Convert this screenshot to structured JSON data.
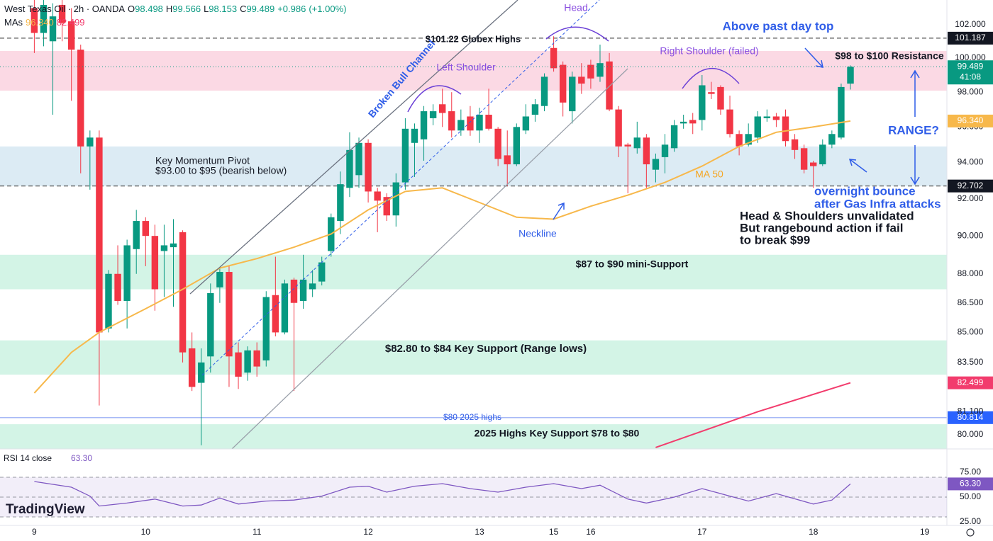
{
  "header": {
    "symbol": "West Texas Oil · 2h · OANDA",
    "fields": [
      {
        "key": "O",
        "value": 98.498
      },
      {
        "key": "H",
        "value": 99.566
      },
      {
        "key": "L",
        "value": 98.153
      },
      {
        "key": "C",
        "value": 99.489
      }
    ],
    "change": {
      "value": 0.986,
      "label": "+0.986"
    },
    "change_pct": {
      "value": 1.0,
      "label": "(+1.00%)"
    },
    "mas_label": "MAs",
    "countdown": "41:08"
  },
  "branding": "TradingView",
  "chart_data": [
    {
      "type": "candlestick",
      "log_scale": true,
      "grid": false,
      "up_color": "#089981",
      "down_color": "#f23645",
      "xlim": [
        -3.7,
        98.4
      ],
      "ylim": [
        79.33,
        103.5
      ],
      "xticks": [
        {
          "value": 0,
          "label": "9"
        },
        {
          "value": 12,
          "label": "10"
        },
        {
          "value": 24,
          "label": "11"
        },
        {
          "value": 36,
          "label": "12"
        },
        {
          "value": 48,
          "label": "13"
        },
        {
          "value": 56,
          "label": "15"
        },
        {
          "value": 60,
          "label": "16"
        },
        {
          "value": 72,
          "label": "17"
        },
        {
          "value": 84,
          "label": "18"
        },
        {
          "value": 96,
          "label": "19"
        }
      ],
      "yticks": [
        {
          "value": 102,
          "label": "102.000"
        },
        {
          "value": 100,
          "label": "100.000"
        },
        {
          "value": 98,
          "label": "98.000"
        },
        {
          "value": 96,
          "label": "96.000"
        },
        {
          "value": 94,
          "label": "94.000"
        },
        {
          "value": 92,
          "label": "92.000"
        },
        {
          "value": 90,
          "label": "90.000"
        },
        {
          "value": 88,
          "label": "88.000"
        },
        {
          "value": 86.5,
          "label": "86.500"
        },
        {
          "value": 85,
          "label": "85.000"
        },
        {
          "value": 83.5,
          "label": "83.500"
        },
        {
          "value": 81.1,
          "label": "81.100"
        },
        {
          "value": 80,
          "label": "80.000"
        }
      ],
      "open": [
        103,
        101.5,
        101,
        103.2,
        102.2,
        100.5,
        94.9,
        95.4,
        85.2,
        88,
        86.6,
        89.3,
        90.8,
        90,
        89.2,
        89.4,
        90.2,
        84.2,
        82.5,
        83.8,
        87.3,
        88.1,
        84,
        83,
        84.1,
        83.6,
        86.9,
        85,
        87.7,
        86.6,
        87.2,
        87.6,
        89.2,
        90.8,
        92.6,
        93.3,
        95.1,
        92.4,
        92.1,
        91.1,
        92.9,
        95.1,
        95.3,
        96.5,
        97.3,
        96.9,
        95.8,
        96.6,
        95.8,
        96.7,
        95.9,
        94.4,
        93.9,
        95.8,
        96.7,
        97.2,
        100.6,
        99.6,
        96.9,
        98.9,
        99.6,
        98.9,
        99.8,
        97.0,
        95.0,
        94.8,
        95.4,
        93.6,
        94.3,
        94.8,
        96.2,
        96.4,
        96.4,
        98.0,
        98.3,
        97.0,
        95.6,
        95.0,
        95.4,
        96.5,
        96.6,
        96.6,
        95.3,
        94.8,
        94.0,
        93.9,
        95.0,
        95.4,
        98.498
      ],
      "high": [
        103.5,
        103.5,
        103.3,
        103.5,
        103,
        100.8,
        95.8,
        95.8,
        88.2,
        89.5,
        89.8,
        91.4,
        91,
        90.6,
        90.6,
        90.9,
        90.3,
        85,
        84.2,
        87.5,
        88.3,
        88.4,
        84.5,
        84.3,
        84.5,
        87.1,
        88.9,
        87.7,
        87.8,
        89.0,
        88.2,
        88.9,
        91.2,
        93.5,
        95.7,
        95.4,
        95.3,
        92.6,
        92.3,
        93.4,
        96.5,
        96.2,
        97.2,
        97.3,
        98.2,
        98.0,
        97.0,
        97.2,
        97.1,
        98.2,
        96,
        95.8,
        96.2,
        97.3,
        97.6,
        99.1,
        101.3,
        99.8,
        99.2,
        99.7,
        99.9,
        100.8,
        100.3,
        97.2,
        95.1,
        96.3,
        95.6,
        94.5,
        95.6,
        96.4,
        96.7,
        96.8,
        99.0,
        98.6,
        98.4,
        97.8,
        95.8,
        96.2,
        96.9,
        97.0,
        96.8,
        97.0,
        95.6,
        95.0,
        94.1,
        95.3,
        95.8,
        98.5,
        99.566
      ],
      "low": [
        100.3,
        100.7,
        96.7,
        101,
        97.5,
        93.4,
        92.5,
        81.4,
        85,
        86.4,
        85.2,
        88,
        88.4,
        86.1,
        86.8,
        86.3,
        83.5,
        82.1,
        79.5,
        83,
        86.5,
        82.3,
        82.2,
        82.6,
        82.8,
        83.3,
        84.8,
        84.9,
        82.1,
        86.2,
        86.8,
        87.4,
        88.9,
        90.1,
        92.1,
        92.6,
        91.8,
        90.2,
        90.8,
        90.5,
        92.5,
        93.2,
        94.1,
        96.1,
        96,
        95.4,
        95.5,
        95.5,
        95.1,
        95.8,
        93.8,
        92.7,
        93.8,
        95.6,
        96.3,
        96.9,
        99.2,
        96.6,
        96.2,
        97.9,
        98.2,
        98.6,
        96.9,
        94.3,
        92.3,
        94.5,
        92.6,
        92.9,
        93.4,
        94.6,
        95.9,
        95.6,
        95.8,
        97.6,
        96.7,
        95.4,
        94.4,
        94.9,
        95.1,
        96.3,
        96.0,
        94.9,
        94.2,
        93.4,
        92.6,
        93.8,
        94.8,
        95.3,
        98.153
      ],
      "close": [
        101.5,
        103.2,
        102.5,
        102.1,
        100.5,
        94.9,
        95.4,
        85.0,
        88.0,
        86.6,
        89.5,
        90.8,
        90.0,
        87.2,
        89.5,
        89.6,
        84.0,
        82.3,
        83.5,
        87,
        88.1,
        83.8,
        82.8,
        84.1,
        83.3,
        86.8,
        85,
        87.5,
        86.5,
        87.7,
        87.5,
        88.6,
        91.0,
        92.8,
        94.7,
        95.1,
        92.4,
        91.9,
        91.1,
        92.9,
        95.9,
        95.9,
        96.9,
        96.9,
        96.8,
        95.8,
        96.4,
        95.8,
        96.7,
        95.9,
        94.2,
        93.9,
        96.0,
        96.6,
        97.3,
        98.9,
        99.4,
        97.4,
        98.9,
        98.5,
        98.8,
        99.7,
        97.0,
        94.9,
        94.9,
        95.4,
        93.9,
        94.2,
        95.0,
        96.1,
        96.3,
        96.2,
        98.4,
        97.9,
        97.0,
        95.6,
        94.9,
        95.6,
        96.6,
        96.6,
        96.4,
        95.2,
        94.7,
        93.6,
        93.8,
        95.0,
        95.6,
        98.3,
        99.489
      ],
      "series": [
        {
          "name": "MA 50",
          "color": "#f7b84b",
          "x": [
            0,
            4,
            7,
            12,
            16,
            20,
            24,
            28,
            32,
            36,
            40,
            44,
            48,
            52,
            56,
            60,
            64,
            68,
            72,
            76,
            80,
            84,
            88
          ],
          "values": [
            82.0,
            84.0,
            85.0,
            86.2,
            87.2,
            88.3,
            88.8,
            89.4,
            90.1,
            91.4,
            92.4,
            92.6,
            91.8,
            91.0,
            90.9,
            91.6,
            92.2,
            92.9,
            93.8,
            94.9,
            95.7,
            96.0,
            96.34
          ],
          "last_label": "96.340"
        },
        {
          "color": "#f23c6d",
          "x": [
            67,
            78,
            88
          ],
          "values": [
            79.4,
            81.1,
            82.499
          ],
          "last_label": "82.499"
        }
      ],
      "zones": [
        {
          "range": [
            98.09,
            100.42
          ],
          "color": "#fbd9e4"
        },
        {
          "range": [
            92.7,
            94.9
          ],
          "color": "#dcebf4"
        },
        {
          "range": [
            87.2,
            89.0
          ],
          "color": "#d3f4e6"
        },
        {
          "range": [
            82.9,
            84.6
          ],
          "color": "#d3f4e6"
        },
        {
          "range": [
            79.33,
            80.5
          ],
          "color": "#d3f4e6"
        }
      ],
      "levels": [
        {
          "value": 101.187,
          "style": "dashed",
          "color": "#555555",
          "tag": "#131722"
        },
        {
          "value": 92.702,
          "style": "dashed",
          "color": "#555555",
          "tag": "#131722"
        },
        {
          "value": 80.814,
          "style": "solid",
          "color": "#8aa2f4",
          "tag": "#2962ff"
        }
      ],
      "annotations": [
        "$101.22 Globex Highs",
        "Head",
        "Above past day top",
        "Right Shoulder (failed)",
        "$98 to $100 Resistance",
        "Left Shoulder",
        "Broken Bull Channel",
        "Key Momentum Pivot",
        "$93.00 to $95 (bearish below)",
        "RANGE?",
        "MA 50",
        "overnight bounce",
        "after Gas Infra attacks",
        "Head & Shoulders unvalidated",
        "But rangebound action if fail",
        "to break $99",
        "Neckline",
        "$87 to $90 mini-Support",
        "$82.80 to $84 Key Support (Range lows)",
        "$80 2025 highs",
        "2025 Highs Key Support $78 to $80"
      ]
    },
    {
      "type": "line",
      "title": "RSI 14 close",
      "xlim": [
        -3.7,
        98.4
      ],
      "ylim": [
        21.4,
        98.6
      ],
      "yticks": [
        {
          "value": 75,
          "label": "75.00"
        },
        {
          "value": 50,
          "label": "50.00"
        },
        {
          "value": 25,
          "label": "25.00"
        }
      ],
      "band": [
        30,
        70
      ],
      "band_color": "#7e57c2",
      "midline": 50,
      "series": [
        {
          "color": "#7e57c2",
          "x": [
            0,
            4,
            6,
            7,
            10,
            13,
            16,
            18,
            20,
            22,
            25,
            28,
            31,
            34,
            36,
            38,
            41,
            44,
            47,
            50,
            53,
            56,
            59,
            61,
            64,
            66,
            69,
            72,
            75,
            77,
            80,
            84,
            86,
            88
          ],
          "values": [
            65.7,
            60,
            51,
            41,
            44,
            48,
            41,
            42,
            49,
            43,
            46,
            47,
            51,
            60,
            61,
            55,
            61,
            63.6,
            58.6,
            55,
            60,
            63.6,
            58.6,
            62,
            48,
            44,
            50,
            58.6,
            51,
            46,
            53.6,
            43,
            47,
            63.3
          ],
          "last_label": "63.30"
        }
      ]
    }
  ]
}
